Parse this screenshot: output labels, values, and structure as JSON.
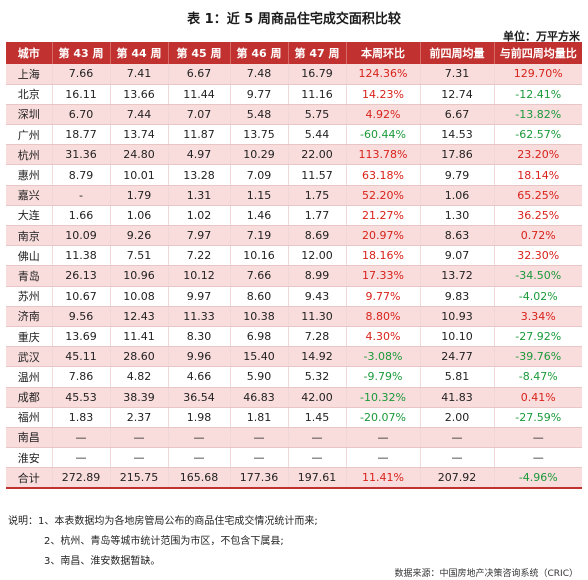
{
  "title": "表 1：近 5 周商品住宅成交面积比较",
  "unit": "单位：万平方米",
  "headers": [
    "城市",
    "第 43 周",
    "第 44 周",
    "第 45 周",
    "第 46 周",
    "第 47 周",
    "本周环比",
    "前四周均量",
    "与前四周均量比"
  ],
  "rows": [
    {
      "city": "上海",
      "w43": "7.66",
      "w44": "7.41",
      "w45": "6.67",
      "w46": "7.48",
      "w47": "16.79",
      "wow": "124.36%",
      "avg4": "7.31",
      "vs_avg": "129.70%",
      "wow_sign": "pos",
      "vs_sign": "pos",
      "shade": true
    },
    {
      "city": "北京",
      "w43": "16.11",
      "w44": "13.66",
      "w45": "11.44",
      "w46": "9.77",
      "w47": "11.16",
      "wow": "14.23%",
      "avg4": "12.74",
      "vs_avg": "-12.41%",
      "wow_sign": "pos",
      "vs_sign": "neg",
      "shade": false
    },
    {
      "city": "深圳",
      "w43": "6.70",
      "w44": "7.44",
      "w45": "7.07",
      "w46": "5.48",
      "w47": "5.75",
      "wow": "4.92%",
      "avg4": "6.67",
      "vs_avg": "-13.82%",
      "wow_sign": "pos",
      "vs_sign": "neg",
      "shade": true
    },
    {
      "city": "广州",
      "w43": "18.77",
      "w44": "13.74",
      "w45": "11.87",
      "w46": "13.75",
      "w47": "5.44",
      "wow": "-60.44%",
      "avg4": "14.53",
      "vs_avg": "-62.57%",
      "wow_sign": "neg",
      "vs_sign": "neg",
      "shade": false
    },
    {
      "city": "杭州",
      "w43": "31.36",
      "w44": "24.80",
      "w45": "4.97",
      "w46": "10.29",
      "w47": "22.00",
      "wow": "113.78%",
      "avg4": "17.86",
      "vs_avg": "23.20%",
      "wow_sign": "pos",
      "vs_sign": "pos",
      "shade": true
    },
    {
      "city": "惠州",
      "w43": "8.79",
      "w44": "10.01",
      "w45": "13.28",
      "w46": "7.09",
      "w47": "11.57",
      "wow": "63.18%",
      "avg4": "9.79",
      "vs_avg": "18.14%",
      "wow_sign": "pos",
      "vs_sign": "pos",
      "shade": false
    },
    {
      "city": "嘉兴",
      "w43": "-",
      "w44": "1.79",
      "w45": "1.31",
      "w46": "1.15",
      "w47": "1.75",
      "wow": "52.20%",
      "avg4": "1.06",
      "vs_avg": "65.25%",
      "wow_sign": "pos",
      "vs_sign": "pos",
      "shade": true
    },
    {
      "city": "大连",
      "w43": "1.66",
      "w44": "1.06",
      "w45": "1.02",
      "w46": "1.46",
      "w47": "1.77",
      "wow": "21.27%",
      "avg4": "1.30",
      "vs_avg": "36.25%",
      "wow_sign": "pos",
      "vs_sign": "pos",
      "shade": false
    },
    {
      "city": "南京",
      "w43": "10.09",
      "w44": "9.26",
      "w45": "7.97",
      "w46": "7.19",
      "w47": "8.69",
      "wow": "20.97%",
      "avg4": "8.63",
      "vs_avg": "0.72%",
      "wow_sign": "pos",
      "vs_sign": "pos",
      "shade": true
    },
    {
      "city": "佛山",
      "w43": "11.38",
      "w44": "7.51",
      "w45": "7.22",
      "w46": "10.16",
      "w47": "12.00",
      "wow": "18.16%",
      "avg4": "9.07",
      "vs_avg": "32.30%",
      "wow_sign": "pos",
      "vs_sign": "pos",
      "shade": false
    },
    {
      "city": "青岛",
      "w43": "26.13",
      "w44": "10.96",
      "w45": "10.12",
      "w46": "7.66",
      "w47": "8.99",
      "wow": "17.33%",
      "avg4": "13.72",
      "vs_avg": "-34.50%",
      "wow_sign": "pos",
      "vs_sign": "neg",
      "shade": true
    },
    {
      "city": "苏州",
      "w43": "10.67",
      "w44": "10.08",
      "w45": "9.97",
      "w46": "8.60",
      "w47": "9.43",
      "wow": "9.77%",
      "avg4": "9.83",
      "vs_avg": "-4.02%",
      "wow_sign": "pos",
      "vs_sign": "neg",
      "shade": false
    },
    {
      "city": "济南",
      "w43": "9.56",
      "w44": "12.43",
      "w45": "11.33",
      "w46": "10.38",
      "w47": "11.30",
      "wow": "8.80%",
      "avg4": "10.93",
      "vs_avg": "3.34%",
      "wow_sign": "pos",
      "vs_sign": "pos",
      "shade": true
    },
    {
      "city": "重庆",
      "w43": "13.69",
      "w44": "11.41",
      "w45": "8.30",
      "w46": "6.98",
      "w47": "7.28",
      "wow": "4.30%",
      "avg4": "10.10",
      "vs_avg": "-27.92%",
      "wow_sign": "pos",
      "vs_sign": "neg",
      "shade": false
    },
    {
      "city": "武汉",
      "w43": "45.11",
      "w44": "28.60",
      "w45": "9.96",
      "w46": "15.40",
      "w47": "14.92",
      "wow": "-3.08%",
      "avg4": "24.77",
      "vs_avg": "-39.76%",
      "wow_sign": "neg",
      "vs_sign": "neg",
      "shade": true
    },
    {
      "city": "温州",
      "w43": "7.86",
      "w44": "4.82",
      "w45": "4.66",
      "w46": "5.90",
      "w47": "5.32",
      "wow": "-9.79%",
      "avg4": "5.81",
      "vs_avg": "-8.47%",
      "wow_sign": "neg",
      "vs_sign": "neg",
      "shade": false
    },
    {
      "city": "成都",
      "w43": "45.53",
      "w44": "38.39",
      "w45": "36.54",
      "w46": "46.83",
      "w47": "42.00",
      "wow": "-10.32%",
      "avg4": "41.83",
      "vs_avg": "0.41%",
      "wow_sign": "neg",
      "vs_sign": "pos",
      "shade": true
    },
    {
      "city": "福州",
      "w43": "1.83",
      "w44": "2.37",
      "w45": "1.98",
      "w46": "1.81",
      "w47": "1.45",
      "wow": "-20.07%",
      "avg4": "2.00",
      "vs_avg": "-27.59%",
      "wow_sign": "neg",
      "vs_sign": "neg",
      "shade": false
    },
    {
      "city": "南昌",
      "w43": "—",
      "w44": "—",
      "w45": "—",
      "w46": "—",
      "w47": "—",
      "wow": "—",
      "avg4": "—",
      "vs_avg": "—",
      "wow_sign": "",
      "vs_sign": "",
      "shade": true
    },
    {
      "city": "淮安",
      "w43": "—",
      "w44": "—",
      "w45": "—",
      "w46": "—",
      "w47": "—",
      "wow": "—",
      "avg4": "—",
      "vs_avg": "—",
      "wow_sign": "",
      "vs_sign": "",
      "shade": false
    },
    {
      "city": "合计",
      "w43": "272.89",
      "w44": "215.75",
      "w45": "165.68",
      "w46": "177.36",
      "w47": "197.61",
      "wow": "11.41%",
      "avg4": "207.92",
      "vs_avg": "-4.96%",
      "wow_sign": "pos",
      "vs_sign": "neg",
      "shade": true,
      "total": true
    }
  ],
  "notes": [
    "说明：1、本表数据均为各地房管局公布的商品住宅成交情况统计而来;",
    "2、杭州、青岛等城市统计范围为市区，不包含下属县;",
    "3、南昌、淮安数据暂缺。"
  ],
  "source": "数据来源：中国房地产决策咨询系统（CRIC）",
  "colors": {
    "header_bg": "#c0312f",
    "shade_bg": "#f9dcdc",
    "positive": "#d8221a",
    "negative": "#1a9a3a"
  }
}
